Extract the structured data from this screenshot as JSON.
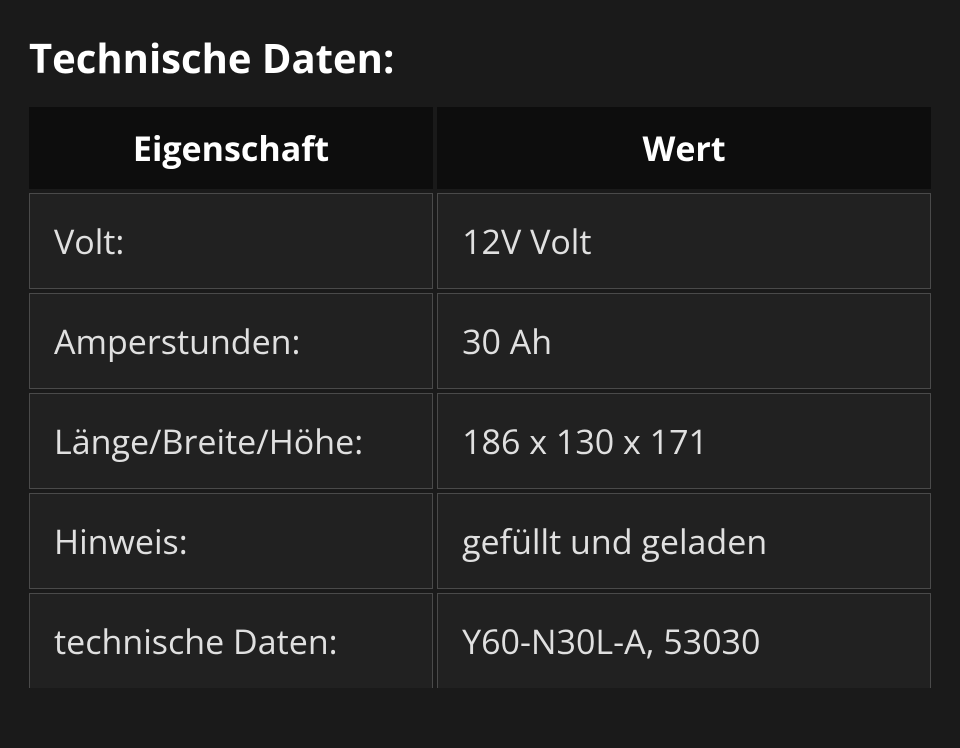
{
  "title": "Technische Daten:",
  "table": {
    "type": "table",
    "background_color": "#1a1a1a",
    "header_bg": "#0d0d0d",
    "cell_bg": "#212121",
    "border_color": "#4a4a4a",
    "text_color": "#e0e0e0",
    "header_text_color": "#ffffff",
    "title_fontsize": 40,
    "header_fontsize": 34,
    "cell_fontsize": 34,
    "columns": [
      {
        "label": "Eigenschaft",
        "width_pct": 45,
        "align": "left"
      },
      {
        "label": "Wert",
        "width_pct": 55,
        "align": "left"
      }
    ],
    "rows": [
      {
        "property": "Volt:",
        "value": "12V Volt"
      },
      {
        "property": "Amperstunden:",
        "value": "30 Ah"
      },
      {
        "property": "Länge/Breite/Höhe:",
        "value": "186 x 130 x 171"
      },
      {
        "property": "Hinweis:",
        "value": "gefüllt und geladen"
      },
      {
        "property": "technische Daten:",
        "value": "Y60-N30L-A, 53030"
      }
    ]
  }
}
